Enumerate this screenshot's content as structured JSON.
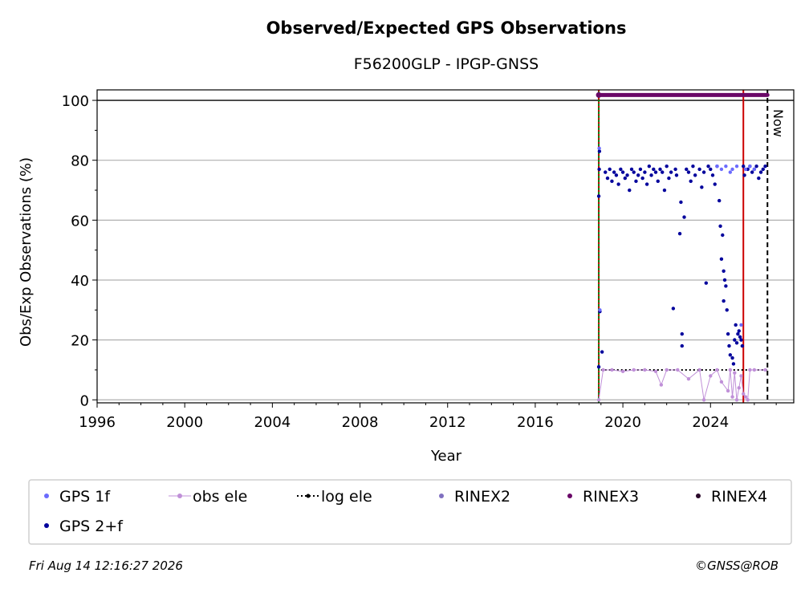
{
  "footer": {
    "timestamp": "Fri Aug 14 12:16:27 2026",
    "credit": "©GNSS@ROB"
  },
  "chart_data": {
    "type": "scatter",
    "title": "Observed/Expected GPS Observations",
    "subtitle": "F56200GLP - IPGP-GNSS",
    "xlabel": "Year",
    "ylabel": "Obs/Exp Observations (%)",
    "xlim": [
      1996,
      2027.8
    ],
    "ylim": [
      -1,
      103.5
    ],
    "xticks": [
      1996,
      2000,
      2004,
      2008,
      2012,
      2016,
      2020,
      2024
    ],
    "yticks": [
      0,
      20,
      40,
      60,
      80,
      100
    ],
    "grid": "horizontal",
    "legend_position": "bottom",
    "legend": [
      {
        "label": "GPS 1f",
        "kind": "point",
        "color": "#6b6bfd"
      },
      {
        "label": "obs ele",
        "kind": "line-point",
        "color": "#c090d8"
      },
      {
        "label": "log ele",
        "kind": "dotted-point",
        "color": "#000000"
      },
      {
        "label": "RINEX2",
        "kind": "point",
        "color": "#8070c0"
      },
      {
        "label": "RINEX3",
        "kind": "point",
        "color": "#6a0868"
      },
      {
        "label": "RINEX4",
        "kind": "point",
        "color": "#2a0a2a"
      },
      {
        "label": "GPS 2+f",
        "kind": "point",
        "color": "#00009c"
      }
    ],
    "vertical_lines": [
      {
        "x": 2018.9,
        "color": "#0a7a0a",
        "style": "solid"
      },
      {
        "x": 2018.9,
        "color": "#cc0000",
        "style": "dotted"
      },
      {
        "x": 2025.5,
        "color": "#cc0000",
        "style": "solid"
      },
      {
        "x": 2026.6,
        "color": "#000000",
        "style": "dashed",
        "label": "Now"
      }
    ],
    "reference_line_y": 100,
    "rinex3_bar": {
      "x_start": 2018.9,
      "x_end": 2026.6,
      "y": 101.8,
      "color": "#6a0868"
    },
    "log_ele": {
      "x_start": 2019.0,
      "x_end": 2026.6,
      "y": 10
    },
    "series": [
      {
        "name": "GPS 2+f",
        "color": "#00009c",
        "x": [
          2018.9,
          2018.9,
          2018.92,
          2018.95,
          2018.93,
          2019.05,
          2019.2,
          2019.3,
          2019.4,
          2019.5,
          2019.6,
          2019.7,
          2019.8,
          2019.9,
          2020.0,
          2020.1,
          2020.2,
          2020.3,
          2020.4,
          2020.5,
          2020.6,
          2020.7,
          2020.8,
          2020.9,
          2021.0,
          2021.1,
          2021.2,
          2021.3,
          2021.4,
          2021.5,
          2021.6,
          2021.7,
          2021.8,
          2021.9,
          2022.0,
          2022.1,
          2022.2,
          2022.3,
          2022.4,
          2022.45,
          2022.6,
          2022.65,
          2022.7,
          2022.7,
          2022.8,
          2022.9,
          2023.0,
          2023.1,
          2023.2,
          2023.3,
          2023.5,
          2023.6,
          2023.7,
          2023.8,
          2023.9,
          2024.0,
          2024.1,
          2024.2,
          2024.3,
          2024.4,
          2024.45,
          2024.5,
          2024.55,
          2024.6,
          2024.6,
          2024.65,
          2024.7,
          2024.75,
          2024.8,
          2024.85,
          2024.9,
          2025.0,
          2025.05,
          2025.1,
          2025.15,
          2025.2,
          2025.25,
          2025.3,
          2025.35,
          2025.4,
          2025.45,
          2025.5,
          2025.55,
          2025.7,
          2025.8,
          2025.9,
          2026.0,
          2026.1,
          2026.2,
          2026.3,
          2026.4,
          2026.5
        ],
        "y": [
          68,
          11,
          77,
          29.5,
          83,
          16,
          76,
          74,
          77,
          73,
          76,
          75,
          72,
          77,
          76,
          74,
          75,
          70,
          77,
          76,
          73,
          75,
          77,
          74,
          76,
          72,
          78,
          75,
          77,
          76,
          73,
          77,
          76,
          70,
          78,
          74,
          76,
          30.5,
          77,
          75,
          55.5,
          66,
          18,
          22,
          61,
          77,
          76,
          73,
          78,
          75,
          77,
          71,
          76,
          39,
          78,
          77,
          75,
          72,
          78,
          66.5,
          58,
          47,
          55,
          43,
          33,
          40,
          38,
          30,
          22,
          18,
          15,
          14,
          12,
          20,
          25,
          19,
          22,
          23,
          21,
          20,
          18,
          78,
          75,
          77,
          78,
          76,
          77,
          78,
          74,
          76,
          77,
          78
        ]
      },
      {
        "name": "GPS 1f",
        "color": "#6b6bfd",
        "x": [
          2018.92,
          2018.95,
          2024.3,
          2024.5,
          2024.7,
          2024.9,
          2025.0,
          2025.2,
          2025.4,
          2025.6,
          2025.8,
          2026.0
        ],
        "y": [
          84,
          30,
          78,
          77,
          78,
          76,
          77,
          78,
          25,
          77,
          78,
          77
        ]
      },
      {
        "name": "obs ele",
        "color": "#c090d8",
        "x": [
          2018.9,
          2019.1,
          2019.5,
          2020.0,
          2020.5,
          2021.0,
          2021.5,
          2021.75,
          2022.0,
          2022.5,
          2023.0,
          2023.5,
          2023.7,
          2024.0,
          2024.3,
          2024.5,
          2024.8,
          2024.9,
          2025.0,
          2025.1,
          2025.2,
          2025.3,
          2025.4,
          2025.5,
          2025.6,
          2025.7,
          2025.8,
          2026.0,
          2026.5
        ],
        "y": [
          0,
          10,
          10,
          9.5,
          10,
          10,
          9.5,
          5,
          10,
          10,
          7,
          10,
          0,
          8,
          10,
          6,
          3,
          10,
          1,
          9,
          0,
          4,
          8,
          2,
          1,
          0,
          10,
          10,
          10
        ]
      }
    ]
  }
}
